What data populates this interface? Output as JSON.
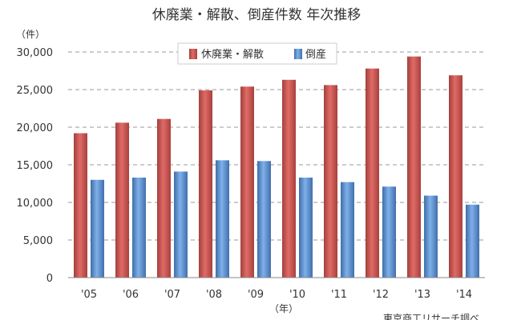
{
  "chart_data": {
    "type": "bar",
    "title": "休廃業・解散、倒産件数 年次推移",
    "ylabel": "（件）",
    "xlabel": "（年）",
    "categories": [
      "'05",
      "'06",
      "'07",
      "'08",
      "'09",
      "'10",
      "'11",
      "'12",
      "'13",
      "'14"
    ],
    "series": [
      {
        "name": "休廃業・解散",
        "color": "#c0504d",
        "values": [
          19200,
          20600,
          21100,
          24900,
          25400,
          26300,
          25600,
          27800,
          29400,
          26900
        ]
      },
      {
        "name": "倒産",
        "color": "#4f81bd",
        "values": [
          13000,
          13300,
          14100,
          15600,
          15500,
          13300,
          12700,
          12100,
          10900,
          9700
        ]
      }
    ],
    "ylim": [
      0,
      30000
    ],
    "yticks": [
      0,
      5000,
      10000,
      15000,
      20000,
      25000,
      30000
    ],
    "ytick_labels": [
      "0",
      "5,000",
      "10,000",
      "15,000",
      "20,000",
      "25,000",
      "30,000"
    ],
    "grid": true,
    "legend_position": "top-center",
    "source": "東京商工リサーチ調べ"
  }
}
